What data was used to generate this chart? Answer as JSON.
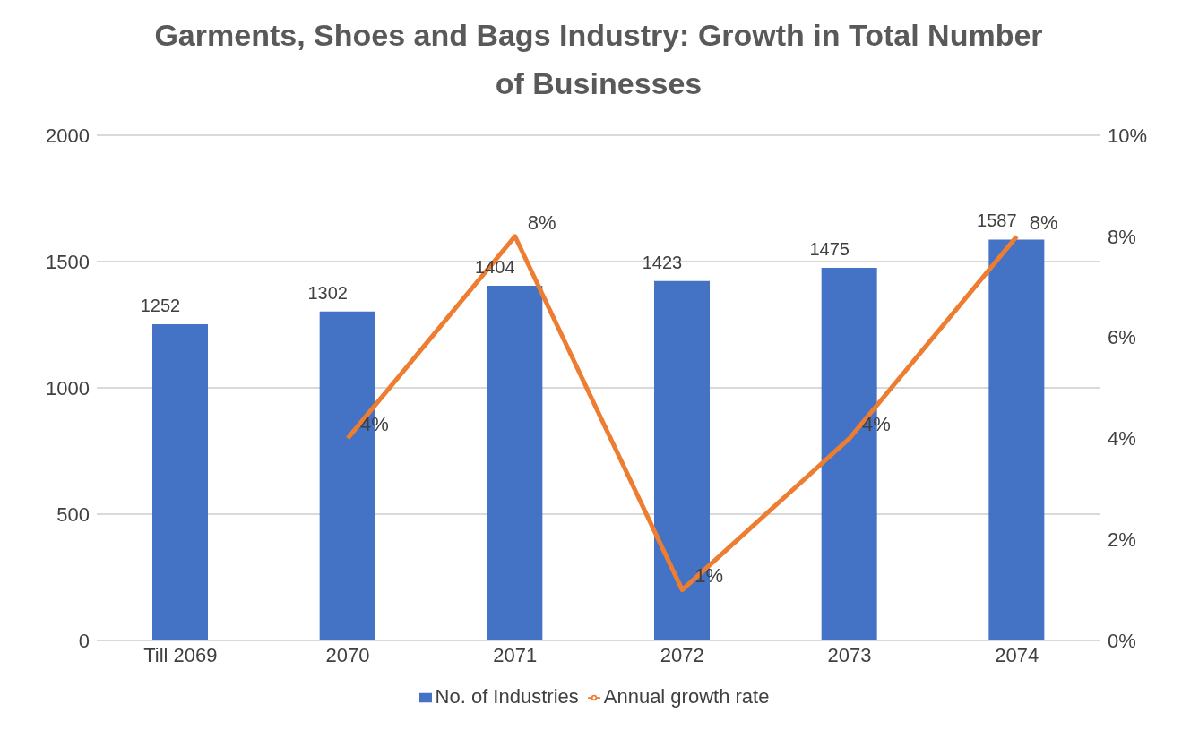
{
  "chart_data": {
    "type": "bar",
    "title": "Garments, Shoes and Bags Industry: Growth in Total Number of Businesses",
    "categories": [
      "Till 2069",
      "2070",
      "2071",
      "2072",
      "2073",
      "2074"
    ],
    "series": [
      {
        "name": "No. of Industries",
        "color": "#4472c4",
        "values": [
          1252,
          1302,
          1404,
          1423,
          1475,
          1587
        ]
      },
      {
        "name": "Annual growth rate",
        "type": "line",
        "axis": "y2",
        "color": "#ed7d31",
        "values": [
          null,
          4,
          8,
          1,
          4,
          8
        ],
        "value_labels": [
          null,
          "4%",
          "8%",
          "1%",
          "4%",
          "8%"
        ]
      }
    ],
    "ylim": [
      0,
      2000
    ],
    "yticks": [
      0,
      500,
      1000,
      1500,
      2000
    ],
    "y2lim": [
      0,
      10
    ],
    "y2ticks": [
      {
        "value": 0,
        "label": "0%"
      },
      {
        "value": 2,
        "label": "2%"
      },
      {
        "value": 4,
        "label": "4%"
      },
      {
        "value": 6,
        "label": "6%"
      },
      {
        "value": 8,
        "label": "8%"
      },
      {
        "value": 10,
        "label": "10%"
      }
    ],
    "grid": "y",
    "legend": "bottom",
    "data_labels": true,
    "marker": "none",
    "line_style": "solid"
  }
}
